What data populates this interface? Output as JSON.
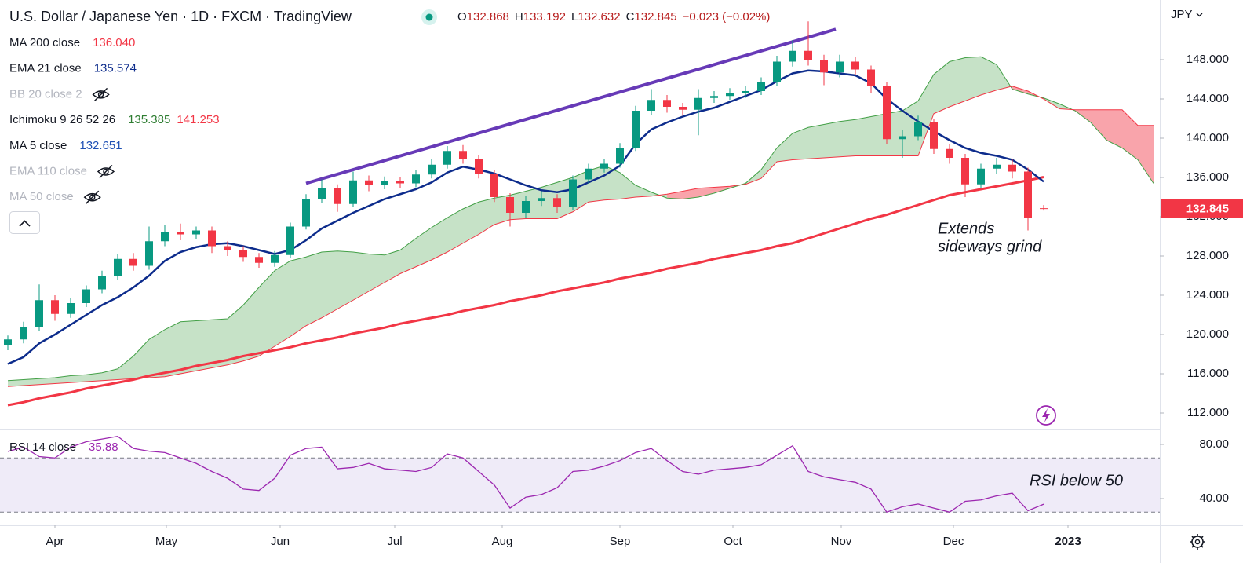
{
  "chart_data": [
    {
      "type": "candlestick",
      "title": "U.S. Dollar / Japanese Yen · 1D · FXCM · TradingView",
      "ohlc_labels": [
        "O",
        "H",
        "L",
        "C"
      ],
      "change": "−0.023 (−0.02%)",
      "currency": "JPY",
      "up_color": "#089981",
      "down_color": "#f23645",
      "open": [
        118.9,
        119.5,
        120.8,
        123.5,
        122.1,
        123.2,
        124.6,
        126.0,
        127.7,
        127.0,
        129.5,
        130.4,
        130.2,
        130.6,
        129.0,
        128.6,
        127.9,
        127.3,
        128.1,
        131.0,
        133.8,
        134.9,
        133.3,
        135.7,
        135.2,
        135.6,
        135.4,
        136.3,
        137.3,
        138.7,
        137.9,
        136.4,
        134.0,
        132.4,
        133.6,
        133.9,
        133.0,
        135.8,
        136.9,
        137.4,
        139.0,
        142.8,
        143.9,
        143.2,
        142.9,
        144.1,
        144.3,
        144.6,
        144.8,
        145.7,
        147.8,
        148.9,
        148.0,
        146.7,
        147.8,
        147.0,
        145.3,
        139.9,
        140.2,
        141.6,
        138.9,
        138.0,
        135.3,
        136.9,
        137.3,
        136.6,
        132.868
      ],
      "high": [
        119.9,
        121.3,
        125.1,
        124.0,
        123.7,
        125.0,
        126.5,
        128.2,
        128.3,
        131.0,
        131.2,
        131.3,
        131.0,
        131.0,
        129.5,
        129.0,
        128.3,
        128.5,
        131.4,
        134.3,
        135.8,
        135.3,
        136.6,
        136.2,
        136.1,
        136.0,
        136.8,
        137.9,
        139.2,
        139.3,
        138.3,
        136.8,
        134.4,
        134.1,
        134.6,
        134.3,
        136.2,
        137.4,
        137.9,
        139.5,
        143.3,
        145.0,
        144.4,
        143.6,
        145.0,
        144.8,
        145.1,
        145.3,
        146.2,
        148.4,
        150.0,
        151.9,
        148.5,
        148.5,
        148.3,
        147.4,
        145.7,
        140.8,
        142.3,
        142.0,
        139.4,
        138.4,
        137.4,
        138.0,
        137.9,
        137.0,
        133.192
      ],
      "low": [
        118.4,
        119.1,
        120.4,
        121.4,
        121.7,
        122.8,
        124.2,
        125.6,
        126.5,
        126.6,
        129.0,
        129.6,
        129.7,
        128.3,
        128.0,
        127.4,
        126.8,
        126.9,
        127.8,
        130.7,
        133.4,
        132.5,
        133.0,
        134.6,
        134.8,
        134.9,
        135.0,
        135.9,
        136.9,
        137.4,
        135.9,
        133.5,
        131.0,
        131.9,
        133.1,
        132.4,
        132.7,
        135.4,
        136.5,
        137.0,
        138.7,
        142.4,
        142.6,
        142.3,
        140.3,
        143.6,
        143.9,
        144.1,
        144.4,
        145.3,
        147.3,
        147.4,
        145.4,
        146.2,
        146.4,
        144.6,
        139.4,
        138.0,
        139.8,
        138.4,
        137.4,
        134.0,
        134.9,
        136.4,
        135.9,
        130.6,
        132.632
      ],
      "close": [
        119.5,
        120.8,
        123.5,
        122.1,
        123.2,
        124.6,
        126.0,
        127.7,
        127.0,
        129.5,
        130.4,
        130.2,
        130.6,
        129.0,
        128.6,
        127.9,
        127.3,
        128.1,
        131.0,
        133.8,
        134.9,
        133.3,
        135.7,
        135.2,
        135.6,
        135.4,
        136.3,
        137.3,
        138.7,
        137.9,
        136.4,
        134.0,
        132.4,
        133.6,
        133.9,
        133.0,
        135.8,
        136.9,
        137.4,
        139.0,
        142.8,
        143.9,
        143.2,
        142.9,
        144.1,
        144.3,
        144.6,
        144.8,
        145.7,
        147.8,
        148.9,
        148.0,
        146.7,
        147.8,
        147.0,
        145.3,
        139.9,
        140.2,
        141.6,
        138.9,
        138.0,
        135.3,
        136.9,
        137.3,
        136.6,
        131.9,
        132.845
      ],
      "series": [
        {
          "name": "MA 200 close",
          "color": "#f23645",
          "width": 3,
          "values": [
            112.8,
            113.1,
            113.5,
            113.8,
            114.1,
            114.5,
            114.8,
            115.1,
            115.4,
            115.8,
            116.1,
            116.4,
            116.8,
            117.1,
            117.4,
            117.8,
            118.1,
            118.4,
            118.7,
            119.1,
            119.4,
            119.7,
            120.1,
            120.4,
            120.7,
            121.1,
            121.4,
            121.7,
            122.0,
            122.4,
            122.7,
            123.0,
            123.4,
            123.7,
            124.0,
            124.4,
            124.7,
            125.0,
            125.3,
            125.7,
            126.0,
            126.3,
            126.7,
            127.0,
            127.3,
            127.7,
            128.0,
            128.3,
            128.6,
            129.0,
            129.3,
            129.8,
            130.3,
            130.8,
            131.3,
            131.8,
            132.2,
            132.7,
            133.2,
            133.7,
            134.2,
            134.5,
            134.8,
            135.1,
            135.4,
            135.7,
            136.04
          ]
        },
        {
          "name": "EMA 21 close",
          "color": "#0d2c8c",
          "width": 2.5,
          "values": [
            117.0,
            117.7,
            119.1,
            120.0,
            121.0,
            122.0,
            123.0,
            123.8,
            124.8,
            126.0,
            127.5,
            128.4,
            128.9,
            129.2,
            129.3,
            129.0,
            128.6,
            128.2,
            128.6,
            129.6,
            130.8,
            131.6,
            132.4,
            133.1,
            133.8,
            134.3,
            134.8,
            135.5,
            136.5,
            137.1,
            136.8,
            136.4,
            135.8,
            135.2,
            134.7,
            134.5,
            134.8,
            135.5,
            136.2,
            137.2,
            139.4,
            140.9,
            141.6,
            142.2,
            142.7,
            143.1,
            143.7,
            144.3,
            144.9,
            145.8,
            146.6,
            146.9,
            146.8,
            146.6,
            146.4,
            145.6,
            144.0,
            142.8,
            141.7,
            140.7,
            139.8,
            139.0,
            138.5,
            138.2,
            137.8,
            136.8,
            135.574
          ]
        }
      ],
      "cloud": {
        "name": "Ichimoku 9 26 52 26",
        "color_a": "#43a047",
        "color_b": "#f23645",
        "values_a": [
          115.3,
          115.4,
          115.5,
          115.6,
          115.8,
          115.9,
          116.1,
          116.5,
          117.8,
          119.5,
          120.5,
          121.3,
          121.4,
          121.5,
          121.6,
          123.0,
          124.8,
          126.5,
          127.5,
          127.9,
          128.4,
          128.5,
          128.4,
          128.2,
          128.1,
          128.6,
          129.8,
          130.9,
          131.9,
          132.8,
          133.5,
          133.9,
          134.2,
          134.6,
          135.0,
          135.5,
          136.0,
          136.7,
          137.2,
          136.5,
          135.2,
          134.5,
          133.9,
          133.8,
          134.0,
          134.4,
          134.9,
          135.4,
          136.8,
          139.0,
          140.5,
          141.1,
          141.4,
          141.7,
          141.9,
          142.2,
          142.5,
          142.8,
          143.8,
          146.5,
          147.8,
          148.2,
          148.3,
          147.5,
          145.0,
          144.5,
          144.1,
          143.5,
          142.8,
          141.6,
          139.8,
          139.0,
          137.8,
          135.4
        ],
        "values_b": [
          114.7,
          114.8,
          114.9,
          115.0,
          115.1,
          115.2,
          115.3,
          115.4,
          115.5,
          115.6,
          115.7,
          116.0,
          116.3,
          116.6,
          116.9,
          117.3,
          117.8,
          118.8,
          119.8,
          120.9,
          121.7,
          122.6,
          123.5,
          124.4,
          125.3,
          126.2,
          126.9,
          127.6,
          128.4,
          129.3,
          130.2,
          131.2,
          131.7,
          131.8,
          131.8,
          131.8,
          132.5,
          133.5,
          133.7,
          133.8,
          134.0,
          134.1,
          134.3,
          134.6,
          134.9,
          135.0,
          135.1,
          135.3,
          135.9,
          137.6,
          137.8,
          137.9,
          138.0,
          138.1,
          138.2,
          138.2,
          138.2,
          138.2,
          138.2,
          142.5,
          143.2,
          143.8,
          144.4,
          144.9,
          145.3,
          144.8,
          144.0,
          143.0,
          142.9,
          142.9,
          142.9,
          142.9,
          141.3,
          141.3
        ]
      },
      "trendline": {
        "color": "#673ab7",
        "x": [
          19,
          52.75
        ],
        "y": [
          135.4,
          151.1
        ]
      },
      "legend": [
        {
          "label": "MA 200 close",
          "values": [
            136.04
          ],
          "value_labels": [
            "136.040"
          ],
          "value_colors": [
            "#f23645"
          ]
        },
        {
          "label": "EMA 21 close",
          "values": [
            135.574
          ],
          "value_colors": [
            "#0d2c8c"
          ]
        },
        {
          "label": "BB 20 close 2",
          "hidden": true
        },
        {
          "label": "Ichimoku 9 26 52 26",
          "values": [
            135.385,
            141.253
          ],
          "value_colors": [
            "#2e7d32",
            "#f23645"
          ]
        },
        {
          "label": "MA 5 close",
          "values": [
            132.651
          ],
          "value_colors": [
            "#1e50b4"
          ]
        },
        {
          "label": "EMA 110 close",
          "hidden": true
        },
        {
          "label": "MA 50 close",
          "hidden": true
        }
      ],
      "annotations": [
        "Extends",
        "sideways grind"
      ],
      "xlim": [
        -0.5,
        73.4
      ],
      "xticks": [
        {
          "value": 3,
          "label": "Apr"
        },
        {
          "value": 10.1,
          "label": "May"
        },
        {
          "value": 17.35,
          "label": "Jun"
        },
        {
          "value": 24.65,
          "label": "Jul"
        },
        {
          "value": 31.5,
          "label": "Aug"
        },
        {
          "value": 39,
          "label": "Sep"
        },
        {
          "value": 46.2,
          "label": "Oct"
        },
        {
          "value": 53.1,
          "label": "Nov"
        },
        {
          "value": 60.25,
          "label": "Dec"
        },
        {
          "value": 67.55,
          "label": "2023"
        }
      ],
      "ylim": [
        110.48,
        154.08
      ],
      "yticks": [
        {
          "value": 112,
          "label": "112.000"
        },
        {
          "value": 116,
          "label": "116.000"
        },
        {
          "value": 120,
          "label": "120.000"
        },
        {
          "value": 124,
          "label": "124.000"
        },
        {
          "value": 128,
          "label": "128.000"
        },
        {
          "value": 132,
          "label": "132.000"
        },
        {
          "value": 136,
          "label": "136.000"
        },
        {
          "value": 140,
          "label": "140.000"
        },
        {
          "value": 144,
          "label": "144.000"
        },
        {
          "value": 148,
          "label": "148.000"
        }
      ]
    },
    {
      "type": "line",
      "series": [
        {
          "name": "RSI 14 close",
          "color": "#9c27b0",
          "values": [
            74.8,
            78.0,
            71.0,
            70.0,
            78.0,
            82.0,
            84.0,
            86.0,
            77.0,
            75.0,
            74.0,
            70.0,
            66.0,
            60.0,
            55.0,
            47.0,
            46.0,
            55.0,
            72.0,
            77.0,
            78.0,
            62.0,
            63.0,
            66.0,
            62.0,
            61.0,
            60.0,
            63.0,
            73.0,
            70.0,
            60.0,
            50.0,
            33.0,
            41.0,
            43.0,
            48.0,
            60.0,
            61.0,
            64.0,
            68.0,
            74.0,
            77.0,
            68.0,
            60.0,
            58.0,
            61.0,
            62.0,
            63.0,
            65.0,
            72.0,
            79.0,
            60.0,
            56.0,
            54.0,
            52.0,
            47.0,
            30.0,
            34.0,
            36.0,
            33.0,
            30.0,
            38.0,
            39.0,
            42.0,
            44.0,
            31.0,
            35.88
          ]
        }
      ],
      "bands": [
        30,
        70
      ],
      "band_color": "#7e57c2",
      "annotations": [
        "RSI below 50"
      ],
      "xlim": [
        -0.5,
        73.4
      ],
      "ylim": [
        20.87,
        90.43
      ],
      "yticks": [
        {
          "value": 40,
          "label": "40.00"
        },
        {
          "value": 80,
          "label": "80.00"
        }
      ]
    }
  ]
}
